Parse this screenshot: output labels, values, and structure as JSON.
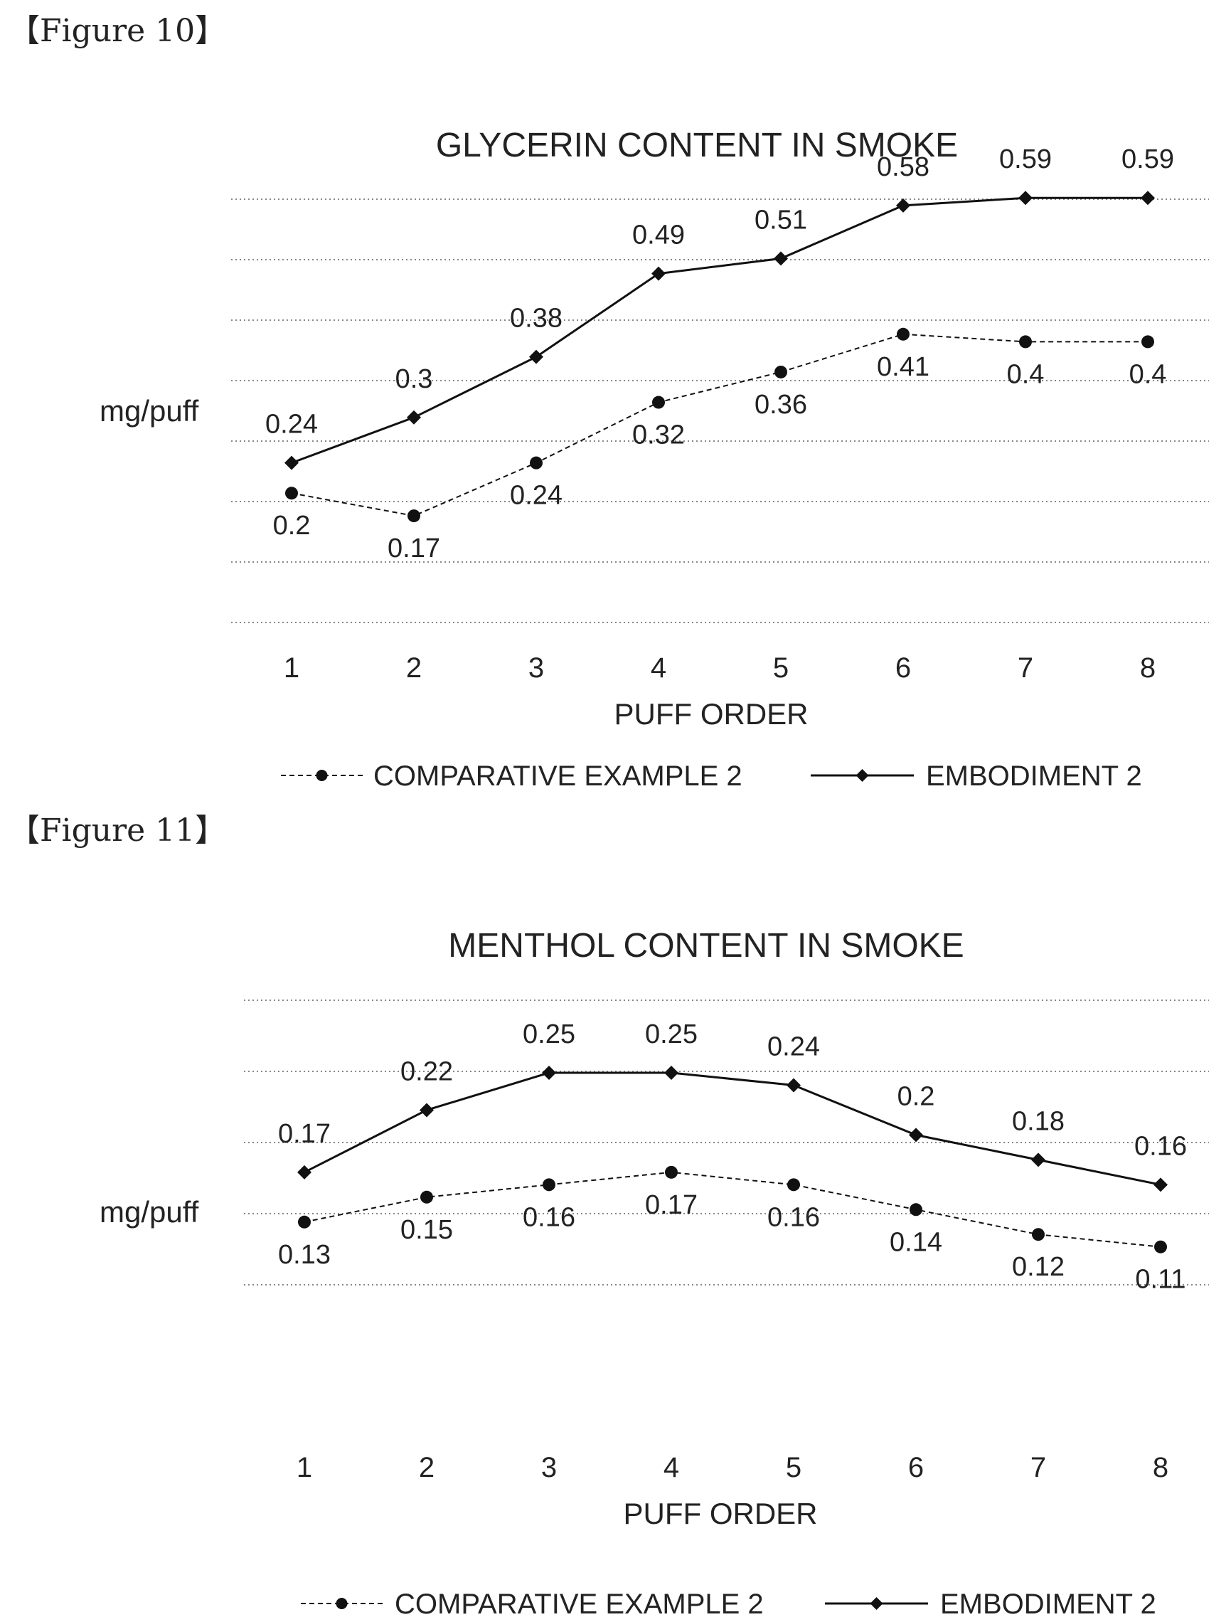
{
  "figures": [
    {
      "label": "【Figure 10】"
    },
    {
      "label": "【Figure 11】"
    }
  ],
  "chart_data": [
    {
      "type": "line",
      "title": "GLYCERIN CONTENT IN SMOKE",
      "xlabel": "PUFF ORDER",
      "ylabel": "mg/puff",
      "categories": [
        "1",
        "2",
        "3",
        "4",
        "5",
        "6",
        "7",
        "8"
      ],
      "ylim": [
        0,
        0.7
      ],
      "grid": true,
      "legend": "bottom",
      "series": [
        {
          "name": "COMPARATIVE EXAMPLE 2",
          "values": [
            0.2,
            0.17,
            0.24,
            0.32,
            0.36,
            0.41,
            0.4,
            0.4
          ],
          "style": "dashed",
          "marker": "circle",
          "labels": [
            "0.2",
            "0.17",
            "0.24",
            "0.32",
            "0.36",
            "0.41",
            "0.4",
            "0.4"
          ]
        },
        {
          "name": "EMBODIMENT 2",
          "values": [
            0.24,
            0.3,
            0.38,
            0.49,
            0.51,
            0.58,
            0.59,
            0.59
          ],
          "style": "solid",
          "marker": "diamond",
          "labels": [
            "0.24",
            "0.3",
            "0.38",
            "0.49",
            "0.51",
            "0.58",
            "0.59",
            "0.59"
          ]
        }
      ]
    },
    {
      "type": "line",
      "title": "MENTHOL CONTENT IN SMOKE",
      "xlabel": "PUFF ORDER",
      "ylabel": "mg/puff",
      "categories": [
        "1",
        "2",
        "3",
        "4",
        "5",
        "6",
        "7",
        "8"
      ],
      "ylim": [
        0,
        0.3
      ],
      "grid": true,
      "legend": "bottom",
      "series": [
        {
          "name": "COMPARATIVE EXAMPLE 2",
          "values": [
            0.13,
            0.15,
            0.16,
            0.17,
            0.16,
            0.14,
            0.12,
            0.11
          ],
          "style": "dashed",
          "marker": "circle",
          "labels": [
            "0.13",
            "0.15",
            "0.16",
            "0.17",
            "0.16",
            "0.14",
            "0.12",
            "0.11"
          ]
        },
        {
          "name": "EMBODIMENT 2",
          "values": [
            0.17,
            0.22,
            0.25,
            0.25,
            0.24,
            0.2,
            0.18,
            0.16
          ],
          "style": "solid",
          "marker": "diamond",
          "labels": [
            "0.17",
            "0.22",
            "0.25",
            "0.25",
            "0.24",
            "0.2",
            "0.18",
            "0.16"
          ]
        }
      ]
    }
  ]
}
